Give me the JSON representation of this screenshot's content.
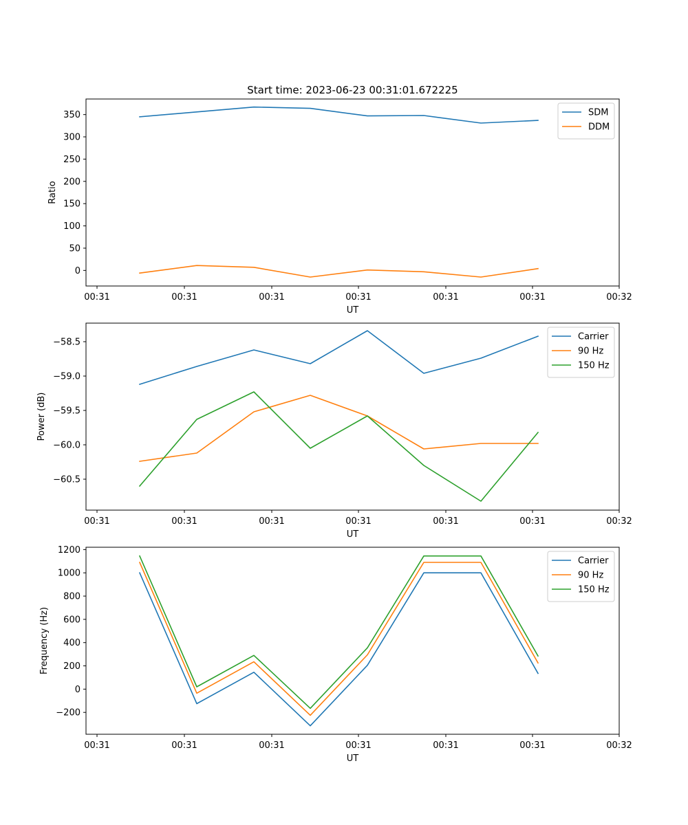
{
  "title": "Start time: 2023-06-23 00:31:01.672225",
  "colors": {
    "blue": "#1f77b4",
    "orange": "#ff7f0e",
    "green": "#2ca02c"
  },
  "chart_data": [
    {
      "type": "line",
      "x": [
        "00:31",
        "00:31",
        "00:31",
        "00:31",
        "00:31",
        "00:31",
        "00:31",
        "00:31"
      ],
      "x_tick_labels": [
        "00:31",
        "00:31",
        "00:31",
        "00:31",
        "00:31",
        "00:31",
        "00:32"
      ],
      "xlabel": "UT",
      "ylabel": "Ratio",
      "ylim": [
        -35,
        385
      ],
      "y_ticks": [
        0,
        50,
        100,
        150,
        200,
        250,
        300,
        350
      ],
      "y_tick_labels": [
        "0",
        "50",
        "100",
        "150",
        "200",
        "250",
        "300",
        "350"
      ],
      "legend_position": "upper right",
      "series": [
        {
          "name": "SDM",
          "color": "#1f77b4",
          "values": [
            345,
            356,
            367,
            364,
            347,
            348,
            331,
            337
          ]
        },
        {
          "name": "DDM",
          "color": "#ff7f0e",
          "values": [
            -6,
            11,
            7,
            -15,
            1,
            -3,
            -15,
            4
          ]
        }
      ]
    },
    {
      "type": "line",
      "x": [
        "00:31",
        "00:31",
        "00:31",
        "00:31",
        "00:31",
        "00:31",
        "00:31",
        "00:31"
      ],
      "x_tick_labels": [
        "00:31",
        "00:31",
        "00:31",
        "00:31",
        "00:31",
        "00:31",
        "00:32"
      ],
      "xlabel": "UT",
      "ylabel": "Power (dB)",
      "ylim": [
        -60.95,
        -58.23
      ],
      "y_ticks": [
        -60.5,
        -60.0,
        -59.5,
        -59.0,
        -58.5
      ],
      "y_tick_labels": [
        "−60.5",
        "−60.0",
        "−59.5",
        "−59.0",
        "−58.5"
      ],
      "legend_position": "upper right",
      "series": [
        {
          "name": "Carrier",
          "color": "#1f77b4",
          "values": [
            -59.12,
            -58.86,
            -58.62,
            -58.82,
            -58.34,
            -58.96,
            -58.74,
            -58.42
          ]
        },
        {
          "name": "90 Hz",
          "color": "#ff7f0e",
          "values": [
            -60.24,
            -60.12,
            -59.52,
            -59.28,
            -59.58,
            -60.06,
            -59.98,
            -59.98
          ]
        },
        {
          "name": "150 Hz",
          "color": "#2ca02c",
          "values": [
            -60.6,
            -59.63,
            -59.23,
            -60.05,
            -59.58,
            -60.3,
            -60.82,
            -59.82
          ]
        }
      ]
    },
    {
      "type": "line",
      "x": [
        "00:31",
        "00:31",
        "00:31",
        "00:31",
        "00:31",
        "00:31",
        "00:31",
        "00:31"
      ],
      "x_tick_labels": [
        "00:31",
        "00:31",
        "00:31",
        "00:31",
        "00:31",
        "00:31",
        "00:32"
      ],
      "xlabel": "UT",
      "ylabel": "Frequency (Hz)",
      "ylim": [
        -388,
        1220
      ],
      "y_ticks": [
        -200,
        0,
        200,
        400,
        600,
        800,
        1000,
        1200
      ],
      "y_tick_labels": [
        "−200",
        "0",
        "200",
        "400",
        "600",
        "800",
        "1000",
        "1200"
      ],
      "legend_position": "upper right",
      "series": [
        {
          "name": "Carrier",
          "color": "#1f77b4",
          "values": [
            1000,
            -125,
            145,
            -315,
            205,
            1000,
            1000,
            135
          ]
        },
        {
          "name": "90 Hz",
          "color": "#ff7f0e",
          "values": [
            1090,
            -35,
            235,
            -225,
            295,
            1090,
            1090,
            225
          ]
        },
        {
          "name": "150 Hz",
          "color": "#2ca02c",
          "values": [
            1145,
            20,
            290,
            -165,
            355,
            1145,
            1145,
            285
          ]
        }
      ]
    }
  ]
}
